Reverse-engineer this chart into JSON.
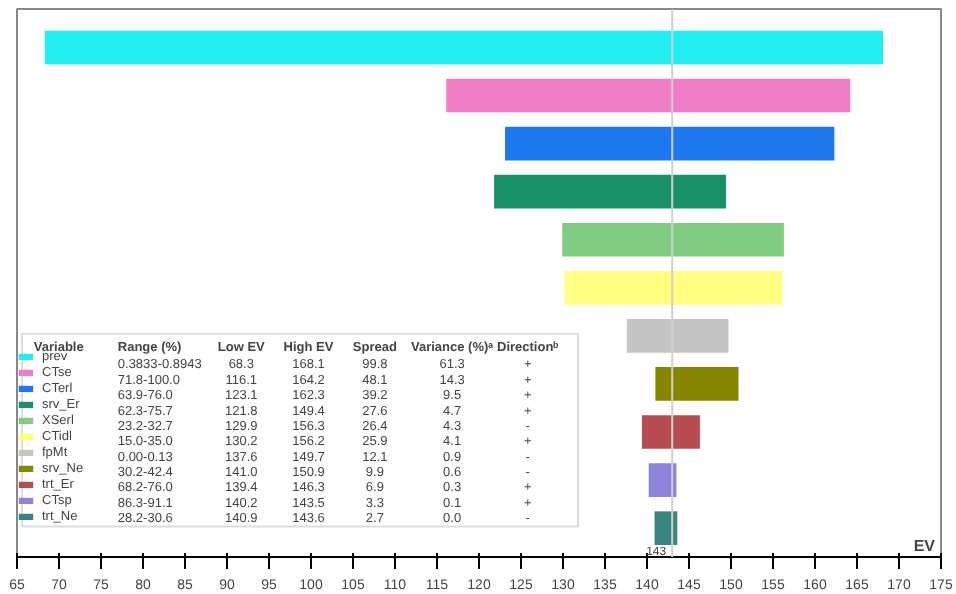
{
  "chart_data": {
    "type": "bar",
    "orientation": "horizontal",
    "categories": [
      null,
      null,
      null,
      null,
      null,
      null,
      null,
      null,
      null,
      null,
      null
    ],
    "series": [
      {
        "name": "prev",
        "color": "#22eef2",
        "base": [
          68.3,
          null,
          null,
          null,
          null,
          null,
          null,
          null,
          null,
          null,
          null
        ],
        "values": [
          99.8,
          null,
          null,
          null,
          null,
          null,
          null,
          null,
          null,
          null,
          null
        ]
      },
      {
        "name": "CTse",
        "color": "#f07cc8",
        "base": [
          null,
          116.1,
          null,
          null,
          null,
          null,
          null,
          null,
          null,
          null,
          null
        ],
        "values": [
          null,
          48.1,
          null,
          null,
          null,
          null,
          null,
          null,
          null,
          null,
          null
        ]
      },
      {
        "name": "CTerl",
        "color": "#1e78f0",
        "base": [
          null,
          null,
          123.1,
          null,
          null,
          null,
          null,
          null,
          null,
          null,
          null
        ],
        "values": [
          null,
          null,
          39.2,
          null,
          null,
          null,
          null,
          null,
          null,
          null,
          null
        ]
      },
      {
        "name": "srv_Er",
        "color": "#18906a",
        "base": [
          null,
          null,
          null,
          121.8,
          null,
          null,
          null,
          null,
          null,
          null,
          null
        ],
        "values": [
          null,
          null,
          null,
          27.6,
          null,
          null,
          null,
          null,
          null,
          null,
          null
        ]
      },
      {
        "name": "XSerl",
        "color": "#80cc80",
        "base": [
          null,
          null,
          null,
          null,
          129.9,
          null,
          null,
          null,
          null,
          null,
          null
        ],
        "values": [
          null,
          null,
          null,
          null,
          26.4,
          null,
          null,
          null,
          null,
          null,
          null
        ]
      },
      {
        "name": "CTidl",
        "color": "#ffff80",
        "base": [
          null,
          null,
          null,
          null,
          null,
          130.2,
          null,
          null,
          null,
          null,
          null
        ],
        "values": [
          null,
          null,
          null,
          null,
          null,
          25.9,
          null,
          null,
          null,
          null,
          null
        ]
      },
      {
        "name": "fpMt",
        "color": "#c4c4c4",
        "base": [
          null,
          null,
          null,
          null,
          null,
          null,
          137.6,
          null,
          null,
          null,
          null
        ],
        "values": [
          null,
          null,
          null,
          null,
          null,
          null,
          12.1,
          null,
          null,
          null,
          null
        ]
      },
      {
        "name": "srv_Ne",
        "color": "#868600",
        "base": [
          null,
          null,
          null,
          null,
          null,
          null,
          null,
          141.0,
          null,
          null,
          null
        ],
        "values": [
          null,
          null,
          null,
          null,
          null,
          null,
          null,
          9.9,
          null,
          null,
          null
        ]
      },
      {
        "name": "trt_Er",
        "color": "#b84c52",
        "base": [
          null,
          null,
          null,
          null,
          null,
          null,
          null,
          null,
          139.4,
          null,
          null
        ],
        "values": [
          null,
          null,
          null,
          null,
          null,
          null,
          null,
          null,
          6.9,
          null,
          null
        ]
      },
      {
        "name": "CTsp",
        "color": "#8c84dc",
        "base": [
          null,
          null,
          null,
          null,
          null,
          null,
          null,
          null,
          null,
          140.2,
          null
        ],
        "values": [
          null,
          null,
          null,
          null,
          null,
          null,
          null,
          null,
          null,
          3.3,
          null
        ]
      },
      {
        "name": "trt_Ne",
        "color": "#3a8484",
        "base": [
          null,
          null,
          null,
          null,
          null,
          null,
          null,
          null,
          null,
          null,
          140.9
        ],
        "values": [
          null,
          null,
          null,
          null,
          null,
          null,
          null,
          null,
          null,
          null,
          2.7
        ]
      }
    ],
    "xlabel": "EV",
    "xlim": [
      65,
      175
    ],
    "xticks": [
      65,
      70,
      75,
      80,
      85,
      90,
      95,
      100,
      105,
      110,
      115,
      120,
      125,
      130,
      135,
      140,
      145,
      150,
      155,
      160,
      165,
      170,
      175
    ],
    "ref_lines": [
      {
        "axis": "x",
        "value": 143,
        "label": "143",
        "color": "#d0d0d0"
      }
    ],
    "legend": "bottom left",
    "annotations": [
      "Variable\tRange (%)\tLow EV\tHigh EV\tSpread\tVariance (%)ᵃ\tDirectionᵇ",
      "0.3833-0.8943\t68.3\t168.1\t99.8\t61.3\t+",
      "71.8-100.0\t116.1\t164.2\t48.1\t14.3\t+",
      "63.9-76.0\t123.1\t162.3\t39.2\t9.5\t+",
      "62.3-75.7\t121.8\t149.4\t27.6\t4.7\t+",
      "23.2-32.7\t129.9\t156.3\t26.4\t4.3\t-",
      "15.0-35.0\t130.2\t156.2\t25.9\t4.1\t+",
      "0.00-0.13\t137.6\t149.7\t12.1\t0.9\t-",
      "30.2-42.4\t141.0\t150.9\t9.9\t0.6\t-",
      "68.2-76.0\t139.4\t146.3\t6.9\t0.3\t+",
      "86.3-91.1\t140.2\t143.5\t3.3\t0.1\t+",
      "28.2-30.6\t140.9\t143.6\t2.7\t0.0\t-"
    ],
    "grid": false
  }
}
